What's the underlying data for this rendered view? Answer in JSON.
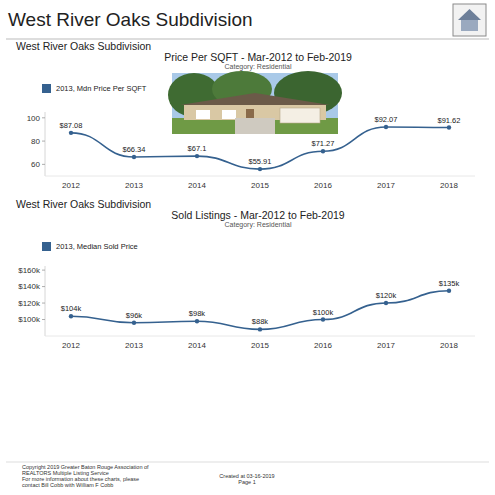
{
  "header": {
    "title": "West River Oaks Subdivision"
  },
  "panel_headings": [
    "West River Oaks Subdivision",
    "West River Oaks Subdivision"
  ],
  "chart_data": [
    {
      "type": "line",
      "title": "Price Per SQFT - Mar-2012 to Feb-2019",
      "subtitle": "Category: Residential",
      "categories": [
        "2012",
        "2013",
        "2014",
        "2015",
        "2016",
        "2017",
        "2018"
      ],
      "series": [
        {
          "name": "2013, Mdn Price Per SQFT",
          "color": "#35618f",
          "values": [
            87.08,
            66.34,
            67.1,
            55.91,
            71.27,
            92.07,
            91.62
          ],
          "value_labels": [
            "$87.08",
            "$66.34",
            "$67.1",
            "$55.91",
            "$71.27",
            "$92.07",
            "$91.62"
          ]
        }
      ],
      "ylim": [
        50,
        105
      ],
      "yticks": [
        60,
        80,
        100
      ],
      "grid": false,
      "legend": "top-left",
      "data_labels": true,
      "marker": "circle",
      "line_style": "solid"
    },
    {
      "type": "line",
      "title": "Sold Listings - Mar-2012 to Feb-2019",
      "subtitle": "Category: Residential",
      "categories": [
        "2012",
        "2013",
        "2014",
        "2015",
        "2016",
        "2017",
        "2018"
      ],
      "series": [
        {
          "name": "2013, Median Sold Price",
          "color": "#35618f",
          "values": [
            104000,
            96000,
            98000,
            88000,
            100000,
            120000,
            135000
          ],
          "value_labels": [
            "$104k",
            "$96k",
            "$98k",
            "$88k",
            "$100k",
            "$120k",
            "$135k"
          ]
        }
      ],
      "ylim": [
        80000,
        165000
      ],
      "yticks": [
        {
          "value": 100000,
          "label": "$100k"
        },
        {
          "value": 120000,
          "label": "$120k"
        },
        {
          "value": 140000,
          "label": "$140k"
        },
        {
          "value": 160000,
          "label": "$160k"
        }
      ],
      "grid": false,
      "legend": "top-left",
      "data_labels": true,
      "marker": "circle",
      "line_style": "solid"
    }
  ],
  "footer": {
    "notes": [
      "Copyright 2019 Greater Baton Rouge Association of",
      "REALTORS Multiple Listing Service",
      "For more information about these charts, please",
      "contact Bill Cobb with William F Cobb"
    ],
    "created": "Created at 03-16-2019",
    "page": "Page 1"
  }
}
